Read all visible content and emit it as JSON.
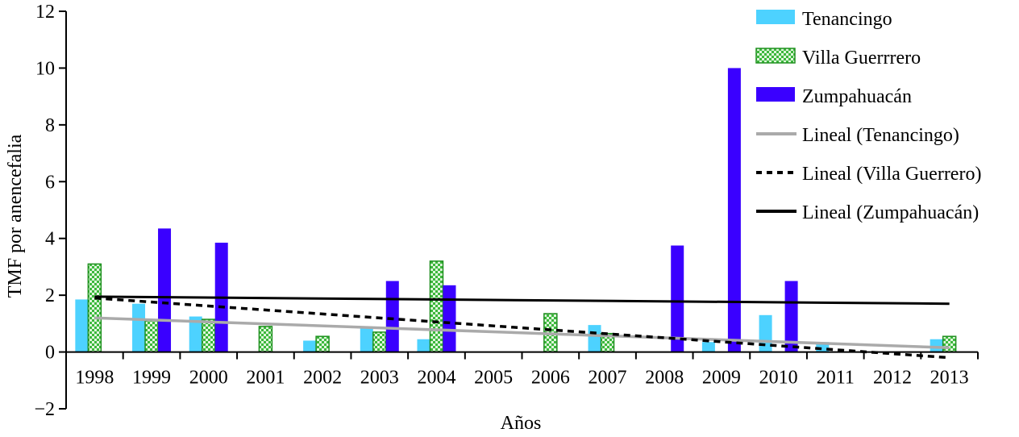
{
  "chart_data": {
    "type": "bar",
    "title": "",
    "xlabel": "Años",
    "ylabel": "TMF por anencefalia",
    "ylim": [
      -2,
      12
    ],
    "yticks": [
      -2,
      0,
      2,
      4,
      6,
      8,
      10,
      12
    ],
    "grid": false,
    "legend_position": "top-right",
    "categories": [
      "1998",
      "1999",
      "2000",
      "2001",
      "2002",
      "2003",
      "2004",
      "2005",
      "2006",
      "2007",
      "2008",
      "2009",
      "2010",
      "2011",
      "2012",
      "2013"
    ],
    "series": [
      {
        "name": "Tenancingo",
        "color": "#4dd2ff",
        "pattern": "solid",
        "values": [
          1.85,
          1.7,
          1.25,
          0,
          0.4,
          0.9,
          0.45,
          0,
          0,
          0.95,
          0,
          0.35,
          1.3,
          0.35,
          0,
          0.45
        ]
      },
      {
        "name": "Villa Guerrrero",
        "color": "#5cd65c",
        "pattern": "checker",
        "values": [
          3.1,
          1.1,
          1.15,
          0.9,
          0.55,
          0.7,
          3.2,
          0,
          1.35,
          0.65,
          0,
          0,
          0,
          0,
          0,
          0.55
        ]
      },
      {
        "name": "Zumpahuacán",
        "color": "#3a00ff",
        "pattern": "solid",
        "values": [
          0,
          4.35,
          3.85,
          0,
          0,
          2.5,
          2.35,
          0,
          0,
          0,
          3.75,
          10.0,
          2.5,
          0,
          0,
          0
        ]
      }
    ],
    "trendlines": [
      {
        "name": "Lineal (Tenancingo)",
        "color": "#aaaaaa",
        "style": "solid",
        "start": 1.2,
        "end": 0.15
      },
      {
        "name": "Lineal (Villa Guerrero)",
        "color": "#000000",
        "style": "dashed",
        "start": 1.9,
        "end": -0.2
      },
      {
        "name": "Lineal (Zumpahuacán)",
        "color": "#000000",
        "style": "solid",
        "start": 1.95,
        "end": 1.7
      }
    ]
  }
}
